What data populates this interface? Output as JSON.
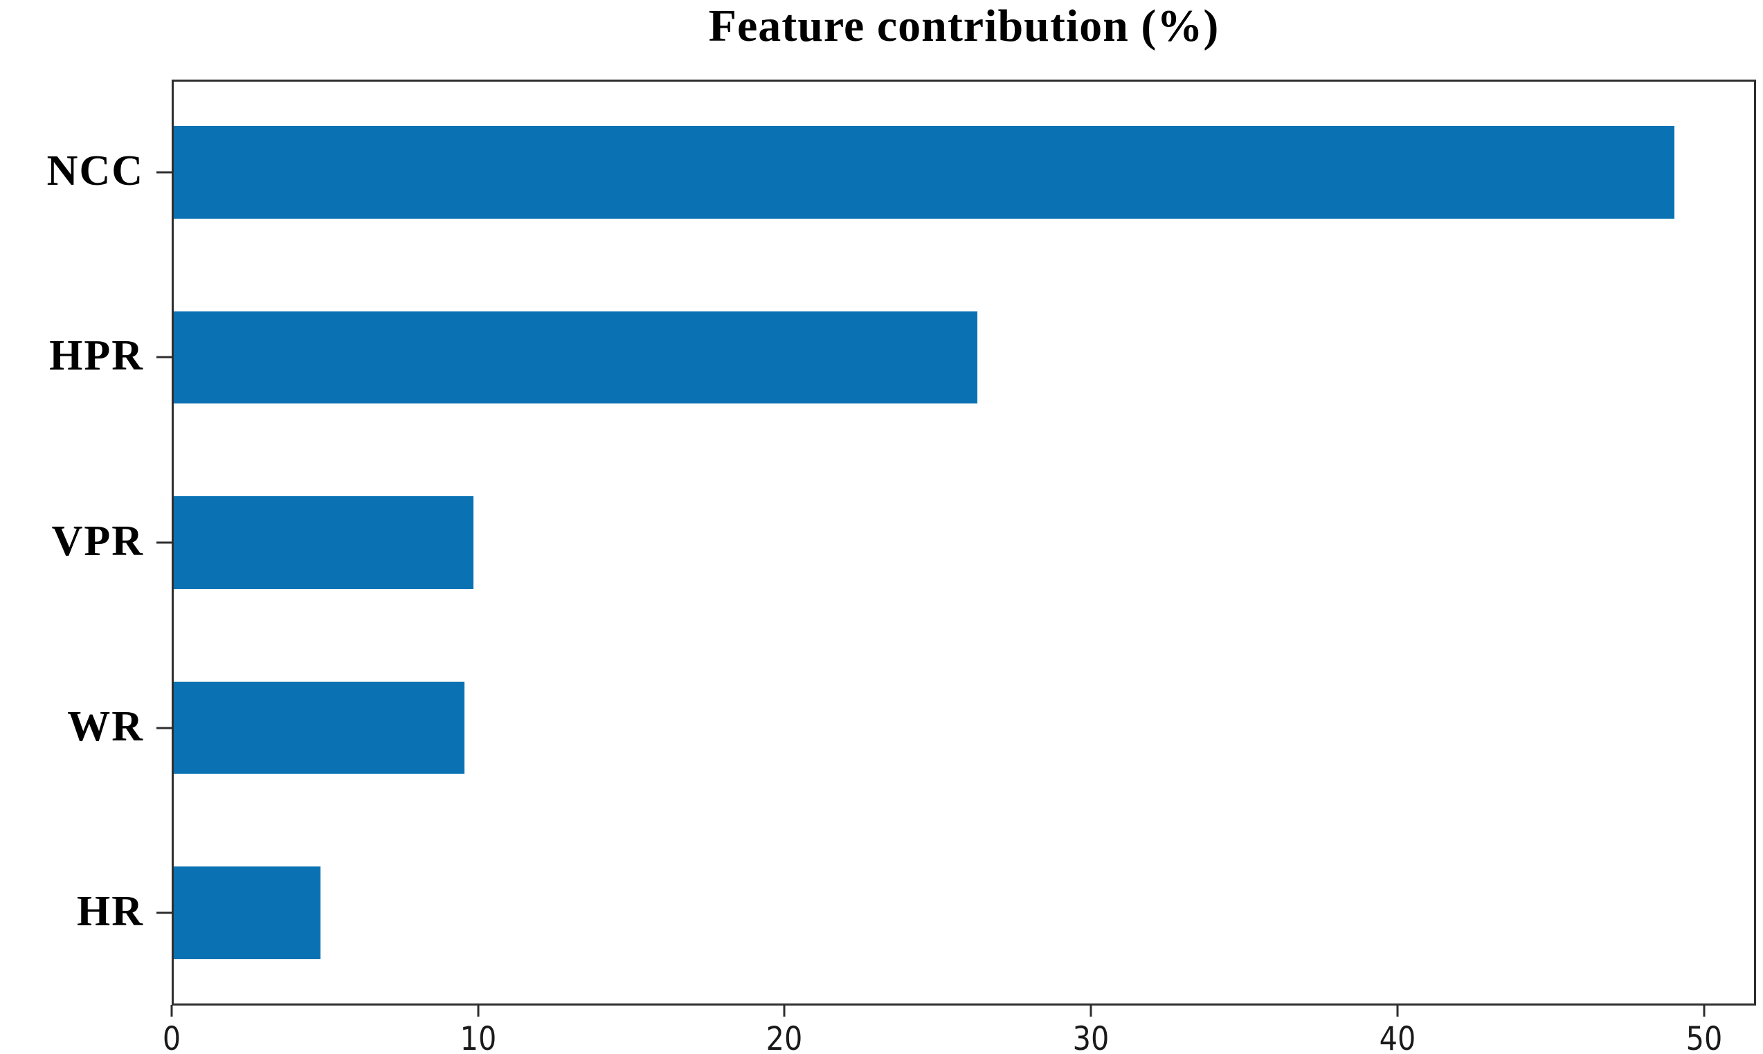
{
  "title": "Feature contribution (%)",
  "colors": {
    "bar": "#0a72b3",
    "axis": "#2e2e2e",
    "title_text": "#000000",
    "tick_text": "#1a1a1a",
    "background": "#ffffff"
  },
  "chart_data": {
    "type": "bar",
    "orientation": "horizontal",
    "title": "Feature contribution (%)",
    "categories": [
      "NCC",
      "HPR",
      "VPR",
      "WR",
      "HR"
    ],
    "values": [
      49.1,
      26.3,
      9.8,
      9.5,
      4.8
    ],
    "xlabel": "",
    "ylabel": "",
    "xlim": [
      0,
      51.7
    ],
    "xticks": [
      0,
      10,
      20,
      30,
      40,
      50
    ],
    "bar_color": "#0a72b3",
    "bar_height_fraction": 0.5,
    "grid": false,
    "legend": null
  }
}
